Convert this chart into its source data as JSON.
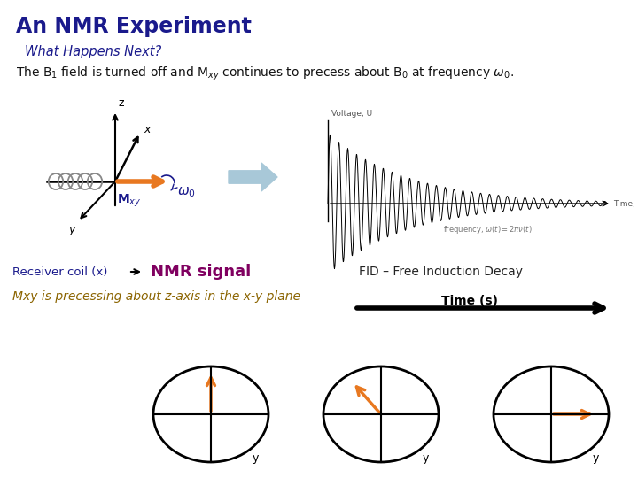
{
  "title": "An NMR Experiment",
  "subtitle": "What Happens Next?",
  "receiver_text": "Receiver coil (x)",
  "nmr_signal_text": "NMR signal",
  "fid_text": "FID – Free Induction Decay",
  "precess_text": "Mxy is precessing about z-axis in the x-y plane",
  "time_text": "Time (s)",
  "title_color": "#1a1a8c",
  "subtitle_color": "#1a1a8c",
  "main_text_color": "#111111",
  "receiver_color": "#1a1a8c",
  "nmr_signal_color": "#800060",
  "fid_color": "#222222",
  "precess_color": "#8B6400",
  "orange_color": "#E87820",
  "bg_color": "#ffffff",
  "arrow_color": "#a8c8d8",
  "coil_color": "#888888"
}
